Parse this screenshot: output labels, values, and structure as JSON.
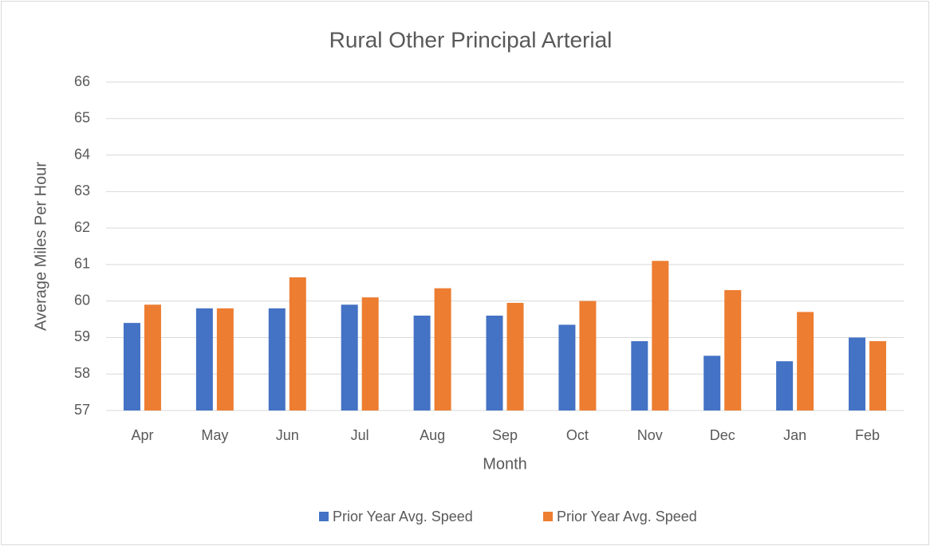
{
  "chart_data": {
    "type": "bar",
    "title": "Rural Other Principal Arterial",
    "x_label": "Month",
    "y_label": "Average Miles Per Hour",
    "categories": [
      "Apr",
      "May",
      "Jun",
      "Jul",
      "Aug",
      "Sep",
      "Oct",
      "Nov",
      "Dec",
      "Jan",
      "Feb"
    ],
    "series": [
      {
        "name": "Prior Year Avg. Speed",
        "color": "#4472c4",
        "values": [
          59.4,
          59.8,
          59.8,
          59.9,
          59.6,
          59.6,
          59.35,
          58.9,
          58.5,
          58.35,
          59.0
        ]
      },
      {
        "name": "Prior Year Avg. Speed",
        "color": "#ed7d31",
        "values": [
          59.9,
          59.8,
          60.65,
          60.1,
          60.35,
          59.95,
          60.0,
          61.1,
          60.3,
          59.7,
          58.9
        ]
      }
    ],
    "ylim": [
      57,
      66
    ],
    "yticks": [
      57,
      58,
      59,
      60,
      61,
      62,
      63,
      64,
      65,
      66
    ],
    "grid": true,
    "legend": "bottom"
  }
}
